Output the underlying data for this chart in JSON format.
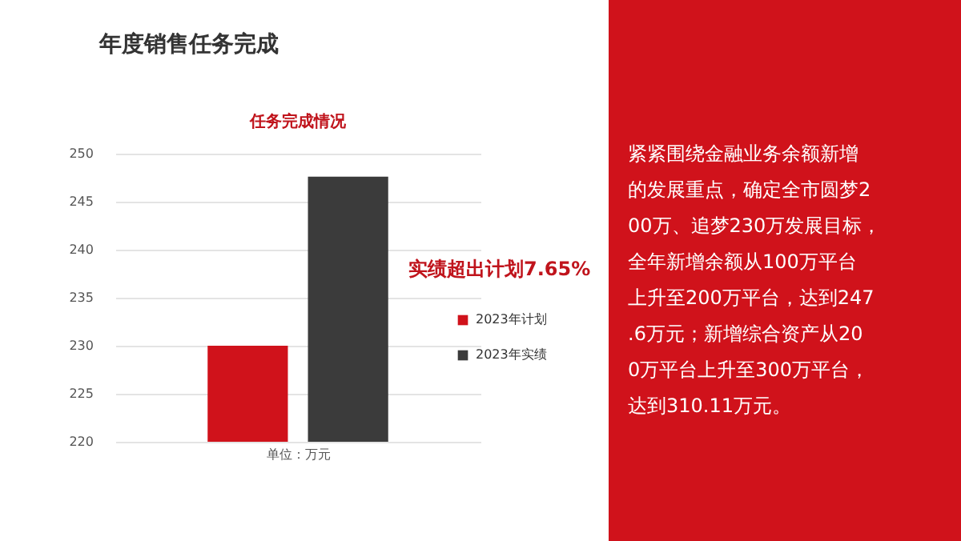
{
  "chart_data": {
    "type": "bar",
    "title": "年度销售任务完成",
    "subtitle": "任务完成情况",
    "xlabel": "单位：万元",
    "categories": [
      null
    ],
    "series": [
      {
        "name": "2023年计划",
        "color": "#d0121b",
        "values": [
          230
        ]
      },
      {
        "name": "2023年实绩",
        "color": "#3b3b3b",
        "values": [
          247.6
        ]
      }
    ],
    "ylim": [
      220,
      250
    ],
    "yticks": [
      220,
      225,
      230,
      235,
      240,
      245,
      250
    ],
    "grid": "y",
    "legend": "right",
    "annotations": [
      "实绩超出计划7.65%",
      "紧紧围绕金融业务余额新增的发展重点，确定全市圆梦200万、追梦230万发展目标，全年新增余额从100万平台上升至200万平台，达到247.6万元；新增综合资产从200万平台上升至300万平台，达到310.11万元。"
    ]
  }
}
